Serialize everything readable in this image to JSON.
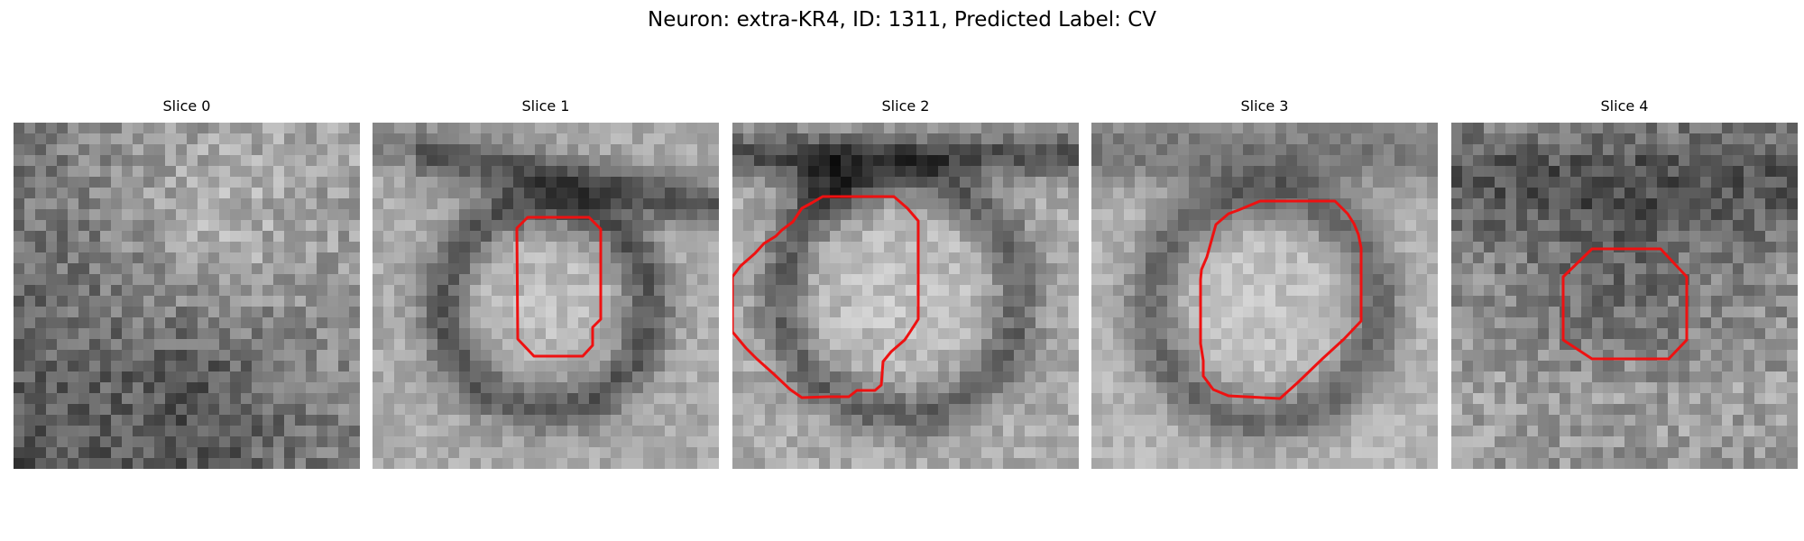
{
  "figure": {
    "title": "Neuron: extra-KR4, ID: 1311, Predicted Label: CV"
  },
  "panels": [
    {
      "title": "Slice 0",
      "image": "grayscale noisy microscopy patch, no clear structure",
      "has_contour": false
    },
    {
      "title": "Slice 1",
      "image": "grayscale patch with dark ring and bright center",
      "has_contour": true,
      "contour_color": "#ee1111"
    },
    {
      "title": "Slice 2",
      "image": "grayscale patch with dark ring and bright center",
      "has_contour": true,
      "contour_color": "#ee1111"
    },
    {
      "title": "Slice 3",
      "image": "grayscale patch with dark ring and bright center",
      "has_contour": true,
      "contour_color": "#ee1111"
    },
    {
      "title": "Slice 4",
      "image": "grayscale noisy patch with faint dark region",
      "has_contour": true,
      "contour_color": "#ee1111"
    }
  ]
}
